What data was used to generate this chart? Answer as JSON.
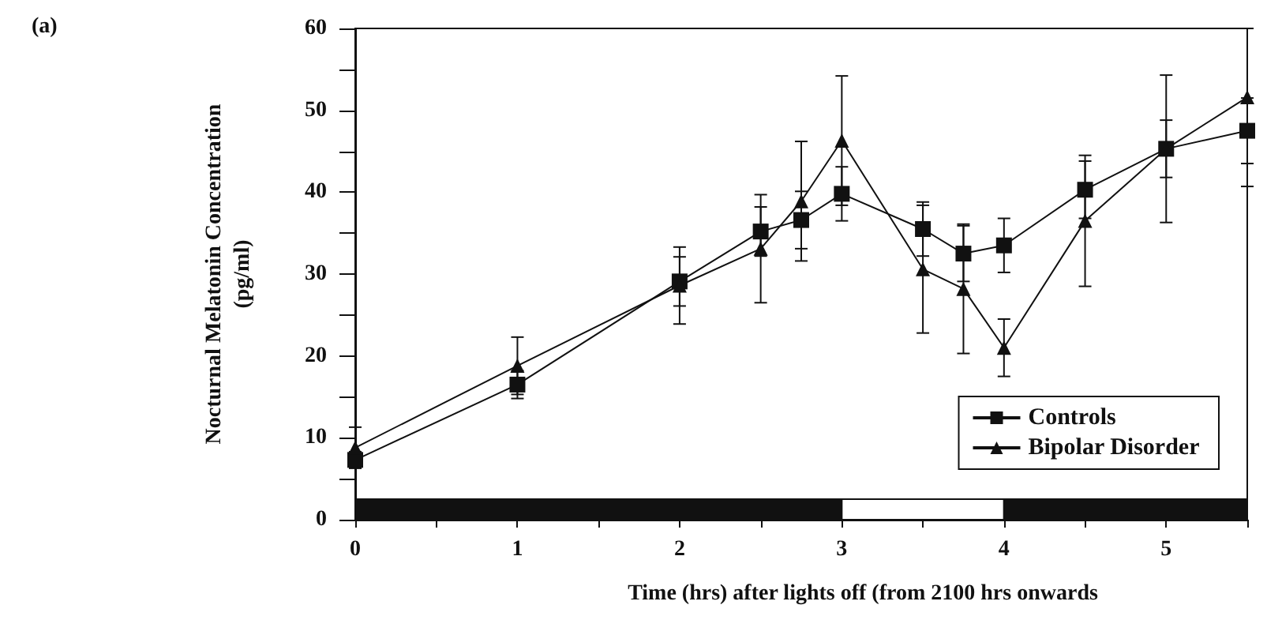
{
  "chart_data": {
    "type": "line",
    "xlabel": "Time (hrs) after lights off (from 2100 hrs onwards",
    "ylabel": "Nocturnal Melatonin Concentration\n(pg/ml)",
    "annotations": [
      "(a)"
    ],
    "x": [
      0,
      1,
      2,
      2.5,
      2.75,
      3,
      3.5,
      3.75,
      4,
      4.5,
      5,
      5.5
    ],
    "series": [
      {
        "name": "Controls",
        "color": "#111111",
        "marker": "square",
        "values": [
          7.3,
          16.5,
          29.1,
          35.2,
          36.6,
          39.8,
          35.5,
          32.5,
          33.5,
          40.3,
          45.3,
          47.5
        ],
        "errors": [
          1,
          1.7,
          3,
          3,
          3.5,
          3.3,
          3.3,
          3.4,
          3.3,
          3.5,
          3.5,
          4
        ]
      },
      {
        "name": "Bipolar Disorder",
        "color": "#111111",
        "marker": "triangle",
        "values": [
          8.8,
          18.8,
          28.6,
          33.1,
          38.9,
          46.3,
          30.6,
          28.2,
          21.0,
          36.5,
          45.3,
          51.6
        ],
        "errors": [
          2.5,
          3.5,
          4.7,
          6.6,
          7.3,
          7.9,
          7.8,
          7.9,
          3.5,
          8,
          9,
          [
            40.7,
            60
          ]
        ]
      }
    ],
    "bands": [
      {
        "axis": "x",
        "from": 0,
        "to": 3,
        "color": "#111111"
      },
      {
        "axis": "x",
        "from": 3,
        "to": 4,
        "color": "#ffffff"
      },
      {
        "axis": "x",
        "from": 4,
        "to": 5.5,
        "color": "#111111"
      }
    ],
    "xlim": [
      0,
      5.5
    ],
    "xticks": [
      0,
      {
        "value": 0.5,
        "label": null
      },
      1,
      {
        "value": 1.5,
        "label": null
      },
      2,
      {
        "value": 2.5,
        "label": null
      },
      3,
      {
        "value": 3.5,
        "label": null
      },
      4,
      {
        "value": 4.5,
        "label": null
      },
      5,
      {
        "value": 5.5,
        "label": null
      }
    ],
    "ylim": [
      0,
      60
    ],
    "yticks": [
      0,
      {
        "value": 5,
        "label": null
      },
      10,
      {
        "value": 15,
        "label": null
      },
      20,
      {
        "value": 25,
        "label": null
      },
      30,
      {
        "value": 35,
        "label": null
      },
      40,
      {
        "value": 45,
        "label": null
      },
      50,
      {
        "value": 55,
        "label": null
      },
      60
    ],
    "grid": false,
    "legend": "bottom right",
    "line_style": "solid"
  }
}
